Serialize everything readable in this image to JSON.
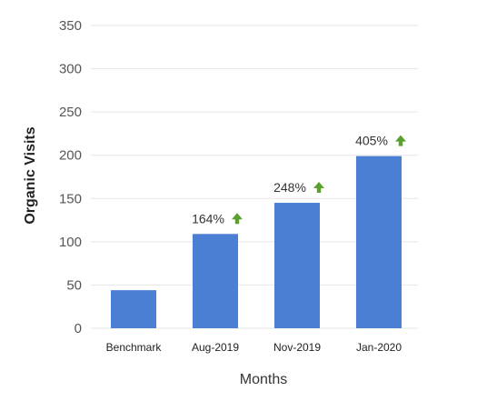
{
  "chart_data": {
    "type": "bar",
    "title": "",
    "xlabel": "Months",
    "ylabel": "Organic Visits",
    "ylim": [
      0,
      350
    ],
    "yticks": [
      0,
      50,
      100,
      150,
      200,
      250,
      300,
      350
    ],
    "grid": true,
    "legend": "none",
    "categories": [
      "Benchmark",
      "Aug-2019",
      "Nov-2019",
      "Jan-2020"
    ],
    "values": [
      44,
      109,
      145,
      199
    ],
    "data_labels": [
      "",
      "164%",
      "248%",
      "405%"
    ],
    "bar_color": "#4a7fd4",
    "arrow_color": "#5aa02c",
    "arrow_icon": "arrow-up-icon"
  }
}
